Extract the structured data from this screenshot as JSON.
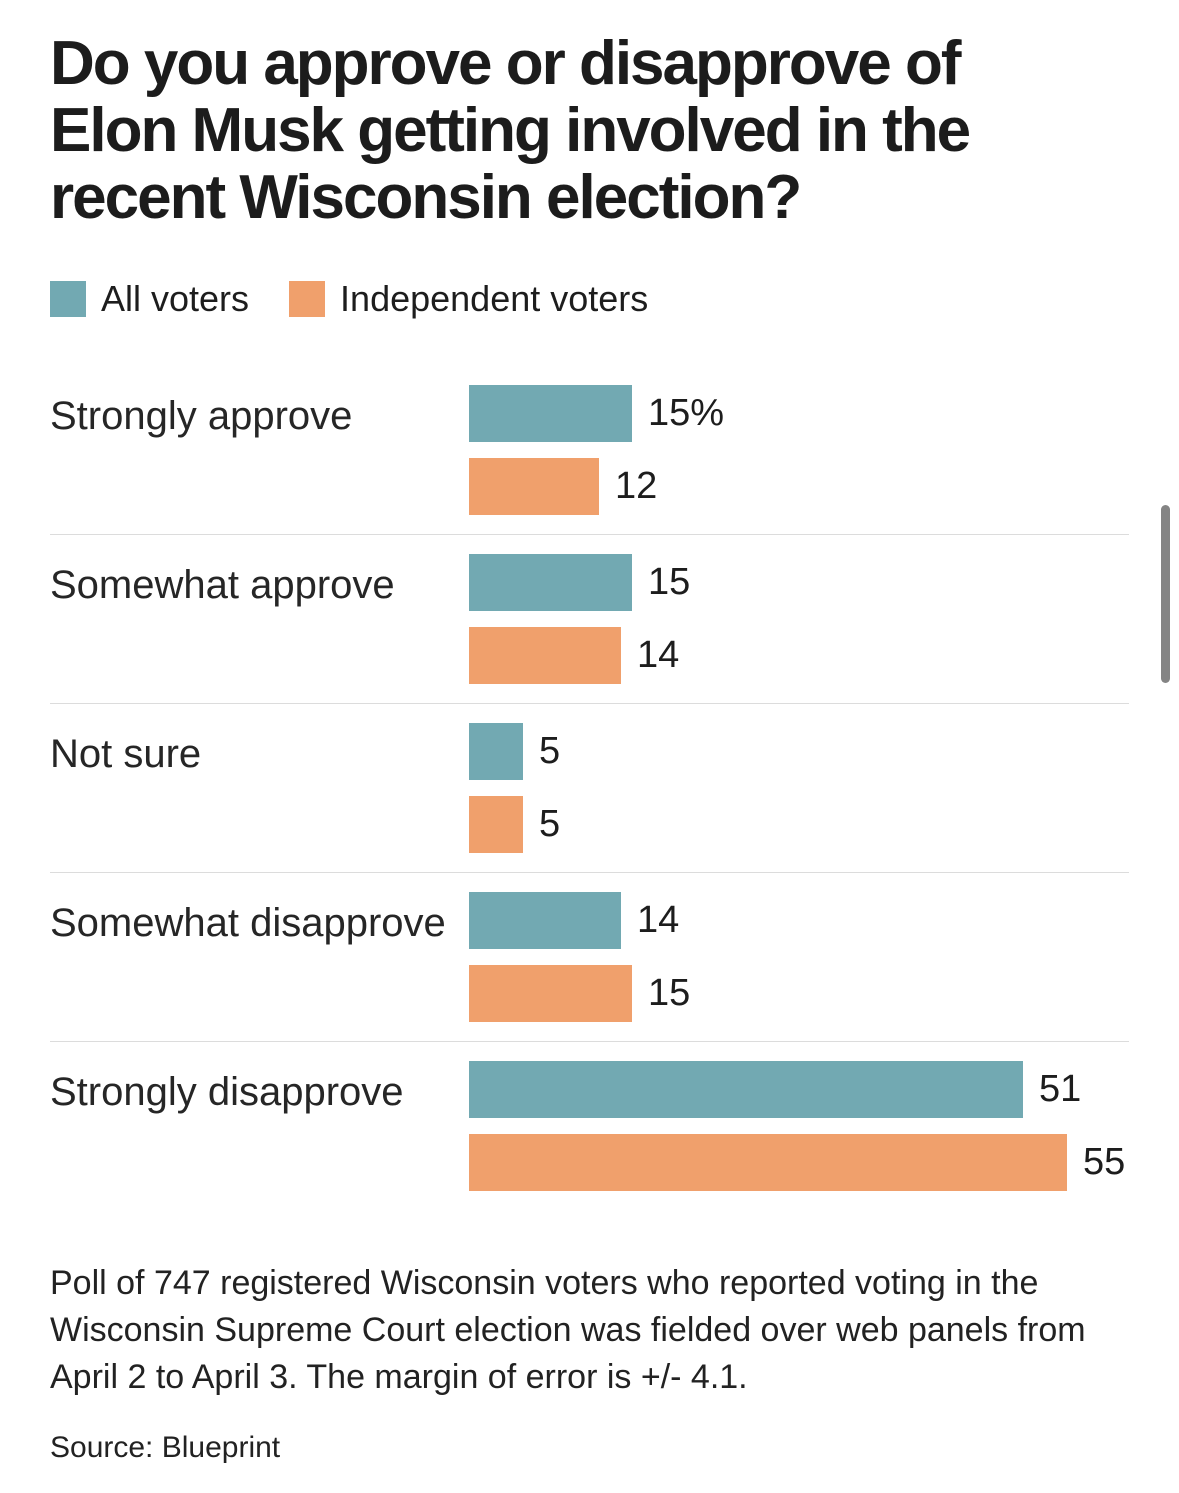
{
  "title": "Do you approve or disapprove of Elon Musk getting involved in the recent Wisconsin election?",
  "legend": {
    "items": [
      {
        "label": "All voters",
        "color": "#72a9b2"
      },
      {
        "label": "Independent voters",
        "color": "#f0a06c"
      }
    ]
  },
  "chart_data": {
    "type": "bar",
    "orientation": "horizontal",
    "title": "Do you approve or disapprove of Elon Musk getting involved in the recent Wisconsin election?",
    "categories": [
      "Strongly approve",
      "Somewhat approve",
      "Not sure",
      "Somewhat disapprove",
      "Strongly disapprove"
    ],
    "series": [
      {
        "name": "All voters",
        "color": "#72a9b2",
        "values": [
          15,
          15,
          5,
          14,
          51
        ],
        "labels": [
          "15%",
          "15",
          "5",
          "14",
          "51"
        ]
      },
      {
        "name": "Independent voters",
        "color": "#f0a06c",
        "values": [
          12,
          14,
          5,
          15,
          55
        ],
        "labels": [
          "12",
          "14",
          "5",
          "15",
          "55"
        ]
      }
    ],
    "value_unit": "percent",
    "xlim": [
      0,
      55
    ],
    "grid": false,
    "legend_position": "top",
    "row_dividers": true
  },
  "footnote": "Poll of 747 registered Wisconsin voters who reported voting in the Wisconsin Supreme Court election was fielded over web panels from April 2 to April 3. The margin of error is +/- 4.1.",
  "source": "Source: Blueprint"
}
